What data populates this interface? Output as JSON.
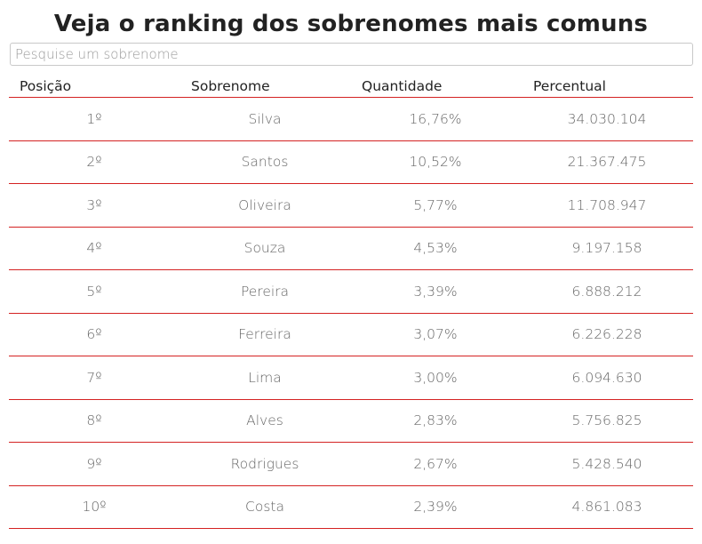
{
  "title": "Veja o ranking dos sobrenomes mais comuns",
  "search": {
    "placeholder": "Pesquise um sobrenome",
    "value": ""
  },
  "table": {
    "headers": [
      "Posição",
      "Sobrenome",
      "Quantidade",
      "Percentual"
    ],
    "rows": [
      {
        "pos": "1º",
        "name": "Silva",
        "qty": "16,76%",
        "pct": "34.030.104"
      },
      {
        "pos": "2º",
        "name": "Santos",
        "qty": "10,52%",
        "pct": "21.367.475"
      },
      {
        "pos": "3º",
        "name": "Oliveira",
        "qty": "5,77%",
        "pct": "11.708.947"
      },
      {
        "pos": "4º",
        "name": "Souza",
        "qty": "4,53%",
        "pct": "9.197.158"
      },
      {
        "pos": "5º",
        "name": "Pereira",
        "qty": "3,39%",
        "pct": "6.888.212"
      },
      {
        "pos": "6º",
        "name": "Ferreira",
        "qty": "3,07%",
        "pct": "6.226.228"
      },
      {
        "pos": "7º",
        "name": "Lima",
        "qty": "3,00%",
        "pct": "6.094.630"
      },
      {
        "pos": "8º",
        "name": "Alves",
        "qty": "2,83%",
        "pct": "5.756.825"
      },
      {
        "pos": "9º",
        "name": "Rodrigues",
        "qty": "2,67%",
        "pct": "5.428.540"
      },
      {
        "pos": "10º",
        "name": "Costa",
        "qty": "2,39%",
        "pct": "4.861.083"
      }
    ]
  },
  "colors": {
    "divider": "#d42222",
    "cell_text": "#666666",
    "header_text": "#222222"
  }
}
